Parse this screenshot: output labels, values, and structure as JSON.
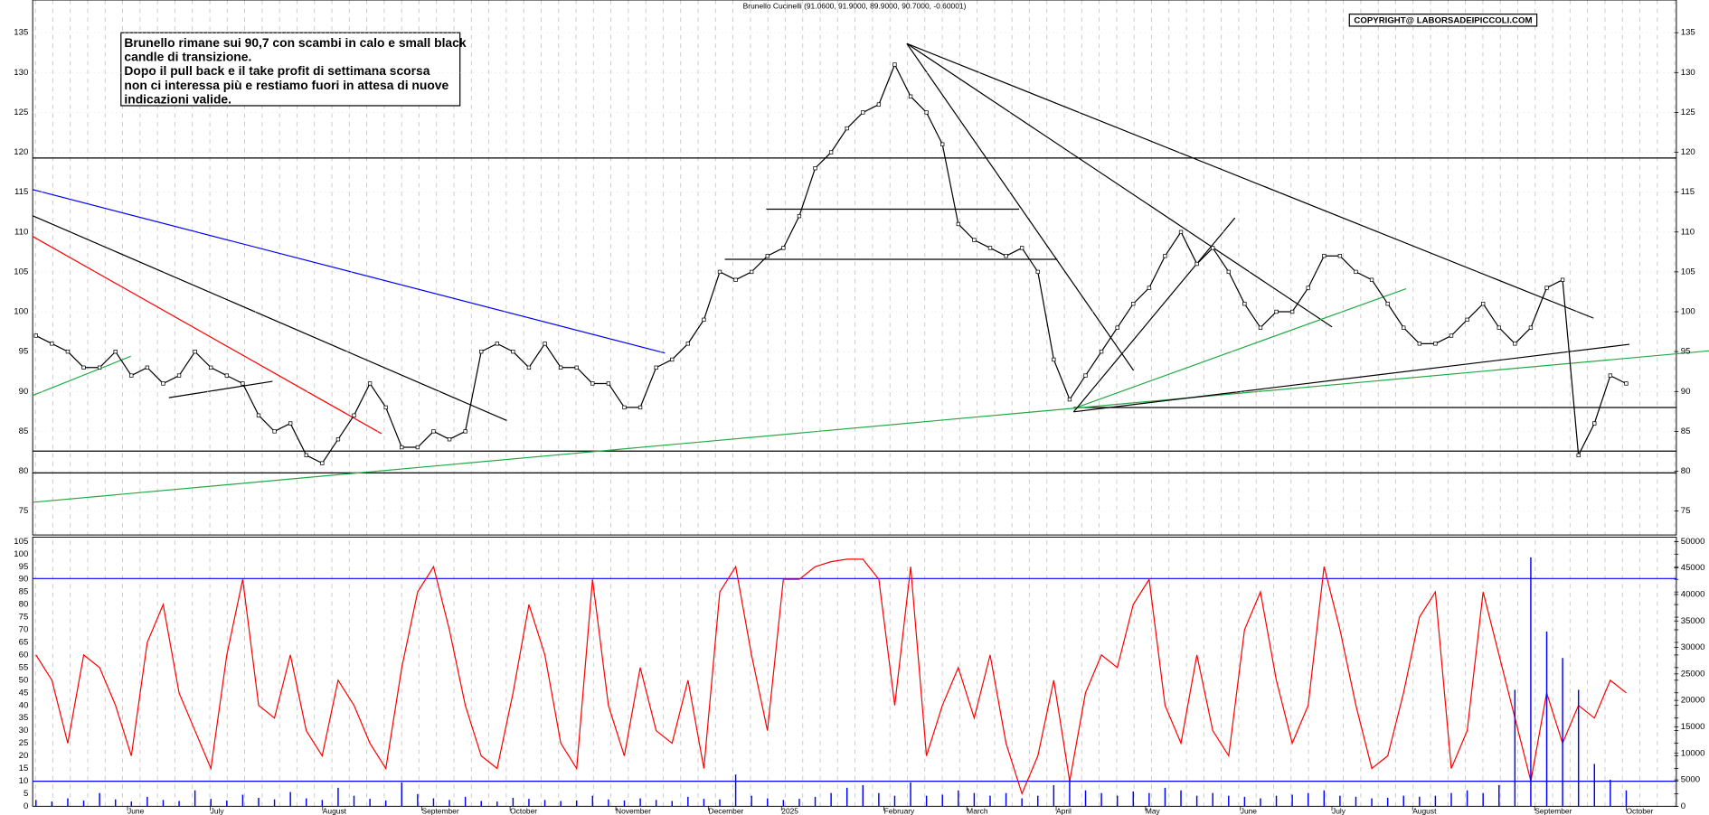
{
  "chart_data": [
    {
      "type": "line",
      "title": "Brunello Cucinelli (91.0600, 91.9000, 89.9000, 90.7000, -0.60001)",
      "copyright": "COPYRIGHT@ LABORSADEIPICCOLI.COM",
      "note": [
        "Brunello rimane sui 90,7 con scambi in calo e small black",
        "candle di transizione.",
        "Dopo il pull back e il take profit di settimana scorsa",
        "non ci interessa più e restiamo fuori in attesa di nuove",
        "indicazioni valide."
      ],
      "color": "#000000",
      "values": [
        97,
        96,
        95,
        93,
        93,
        95,
        92,
        93,
        91,
        92,
        95,
        93,
        92,
        91,
        87,
        85,
        86,
        82,
        81,
        84,
        87,
        91,
        88,
        83,
        83,
        85,
        84,
        85,
        95,
        96,
        95,
        93,
        96,
        93,
        93,
        91,
        91,
        88,
        88,
        93,
        94,
        96,
        99,
        105,
        104,
        105,
        107,
        108,
        112,
        118,
        120,
        123,
        125,
        126,
        131,
        127,
        125,
        121,
        111,
        109,
        108,
        107,
        108,
        105,
        94,
        89,
        92,
        95,
        98,
        101,
        103,
        107,
        110,
        106,
        108,
        105,
        101,
        98,
        100,
        100,
        103,
        107,
        107,
        105,
        104,
        101,
        98,
        96,
        96,
        97,
        99,
        101,
        98,
        96,
        98,
        103,
        104,
        82,
        86,
        92,
        91
      ],
      "ylim": [
        72,
        139.1
      ],
      "yticks": [
        75,
        80,
        85,
        90,
        95,
        100,
        105,
        110,
        115,
        120,
        125,
        130,
        135
      ],
      "grid": true
    },
    {
      "type": "line",
      "color": "#ff0000",
      "values": [
        60,
        50,
        25,
        60,
        55,
        40,
        20,
        65,
        80,
        45,
        30,
        15,
        60,
        90,
        40,
        35,
        60,
        30,
        20,
        50,
        40,
        25,
        15,
        55,
        85,
        95,
        70,
        40,
        20,
        15,
        45,
        80,
        60,
        25,
        15,
        90,
        40,
        20,
        55,
        30,
        25,
        50,
        15,
        85,
        95,
        60,
        30,
        90,
        90,
        95,
        97,
        98,
        98,
        90,
        40,
        95,
        20,
        40,
        55,
        35,
        60,
        25,
        5,
        20,
        50,
        10,
        45,
        60,
        55,
        80,
        90,
        40,
        25,
        60,
        30,
        20,
        70,
        85,
        50,
        25,
        40,
        95,
        70,
        40,
        15,
        20,
        45,
        75,
        85,
        15,
        30,
        85,
        60,
        35,
        10,
        45,
        25,
        40,
        35,
        50,
        45
      ],
      "ylim": [
        0,
        105
      ],
      "yticks": [
        0,
        5,
        10,
        15,
        20,
        25,
        30,
        35,
        40,
        45,
        50,
        55,
        60,
        65,
        70,
        75,
        80,
        85,
        90,
        95,
        100,
        105
      ]
    },
    {
      "type": "bar",
      "color": "#0000ff",
      "values": [
        1200,
        900,
        1500,
        1100,
        2500,
        1300,
        900,
        1800,
        1200,
        1000,
        3000,
        1400,
        1100,
        2200,
        1600,
        1300,
        2700,
        1500,
        1200,
        3500,
        2000,
        1400,
        1100,
        4500,
        2300,
        1500,
        1200,
        1800,
        1000,
        900,
        1600,
        1400,
        1200,
        1000,
        1100,
        2000,
        1300,
        1100,
        1500,
        1200,
        1000,
        1800,
        1400,
        1300,
        6000,
        2000,
        1500,
        1200,
        1400,
        1800,
        2500,
        3500,
        4000,
        2500,
        2000,
        4500,
        2000,
        2200,
        3000,
        2500,
        2000,
        2500,
        1500,
        2000,
        4000,
        5000,
        3000,
        2500,
        2000,
        2800,
        2500,
        3500,
        3000,
        2000,
        2500,
        2000,
        1800,
        1500,
        2000,
        2200,
        2500,
        3000,
        2000,
        1800,
        1500,
        1600,
        2000,
        1800,
        2000,
        2500,
        3000,
        2500,
        4000,
        22000,
        47000,
        33000,
        28000,
        22000,
        8000,
        5000,
        3000
      ],
      "ylim": [
        0,
        50000
      ],
      "yticks": [
        0,
        5000,
        10000,
        15000,
        20000,
        25000,
        30000,
        35000,
        40000,
        45000,
        50000
      ]
    },
    {
      "type": "axis",
      "categories": [
        "June",
        "July",
        "August",
        "September",
        "October",
        "November",
        "December",
        "2025",
        "February",
        "March",
        "April",
        "May",
        "June",
        "July",
        "August",
        "September",
        "October"
      ]
    }
  ]
}
